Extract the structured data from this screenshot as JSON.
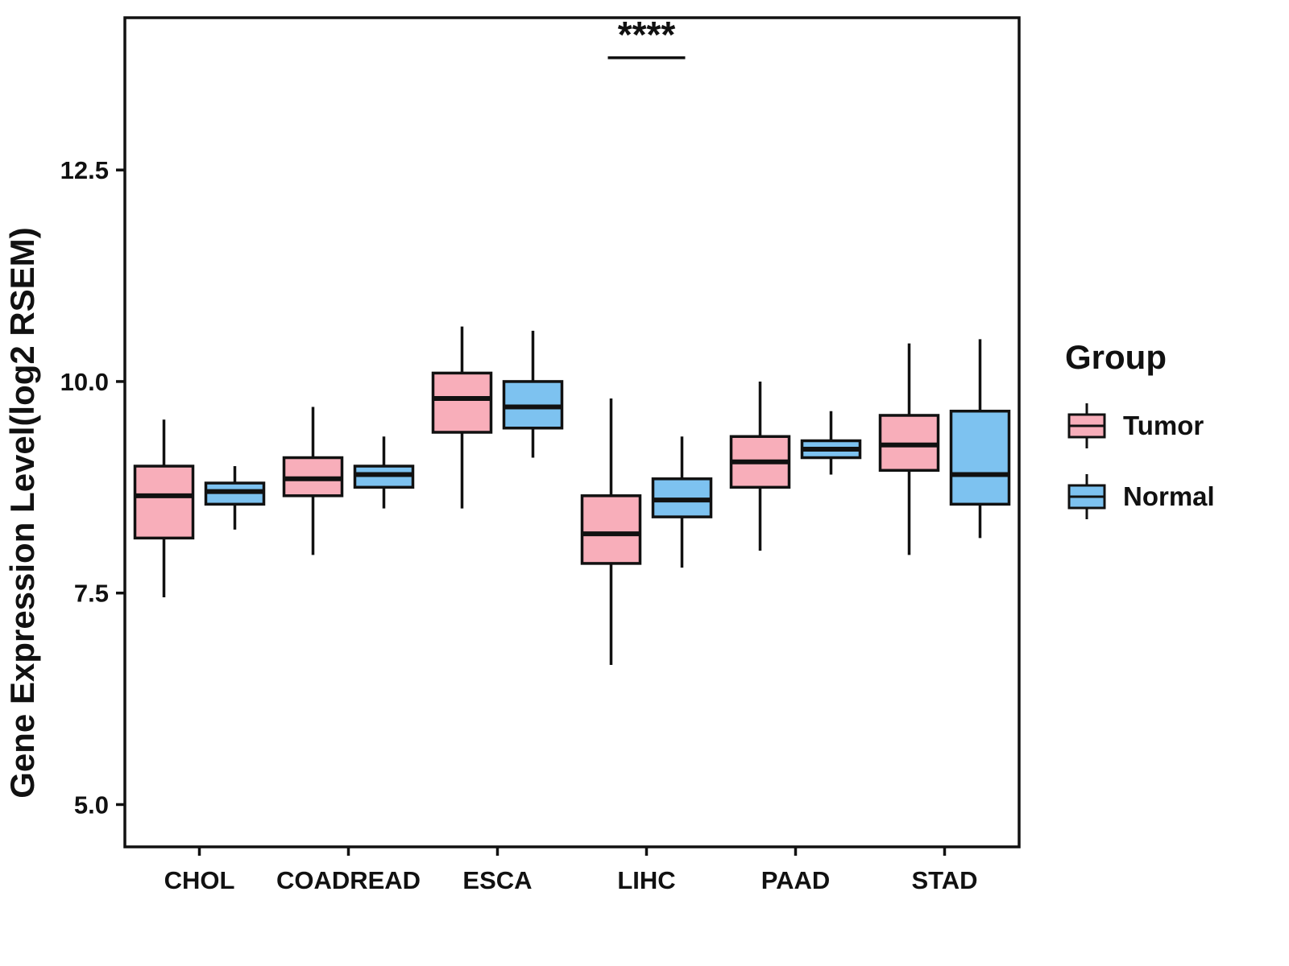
{
  "figure": {
    "legend": {
      "title": "Group",
      "entries": [
        {
          "label": "Tumor",
          "color": "#F8AEBA"
        },
        {
          "label": "Normal",
          "color": "#7DC2F0"
        }
      ]
    }
  },
  "chart_data": {
    "type": "boxplot",
    "title": "",
    "xlabel": "",
    "ylabel": "Gene Expression Level(log2 RSEM)",
    "categories": [
      "CHOL",
      "COADREAD",
      "ESCA",
      "LIHC",
      "PAAD",
      "STAD"
    ],
    "yticks": [
      5.0,
      7.5,
      10.0,
      12.5
    ],
    "ylim": [
      4.5,
      14.3
    ],
    "grid": false,
    "legend_position": "right",
    "series": [
      {
        "name": "Tumor",
        "color": "#F8AEBA",
        "boxes": [
          {
            "category": "CHOL",
            "low": 7.45,
            "q1": 8.15,
            "median": 8.65,
            "q3": 9.0,
            "high": 9.55
          },
          {
            "category": "COADREAD",
            "low": 7.95,
            "q1": 8.65,
            "median": 8.85,
            "q3": 9.1,
            "high": 9.7
          },
          {
            "category": "ESCA",
            "low": 8.5,
            "q1": 9.4,
            "median": 9.8,
            "q3": 10.1,
            "high": 10.65
          },
          {
            "category": "LIHC",
            "low": 6.65,
            "q1": 7.85,
            "median": 8.2,
            "q3": 8.65,
            "high": 9.8
          },
          {
            "category": "PAAD",
            "low": 8.0,
            "q1": 8.75,
            "median": 9.05,
            "q3": 9.35,
            "high": 10.0
          },
          {
            "category": "STAD",
            "low": 7.95,
            "q1": 8.95,
            "median": 9.25,
            "q3": 9.6,
            "high": 10.45
          }
        ]
      },
      {
        "name": "Normal",
        "color": "#7DC2F0",
        "boxes": [
          {
            "category": "CHOL",
            "low": 8.25,
            "q1": 8.55,
            "median": 8.7,
            "q3": 8.8,
            "high": 9.0
          },
          {
            "category": "COADREAD",
            "low": 8.5,
            "q1": 8.75,
            "median": 8.9,
            "q3": 9.0,
            "high": 9.35
          },
          {
            "category": "ESCA",
            "low": 9.1,
            "q1": 9.45,
            "median": 9.7,
            "q3": 10.0,
            "high": 10.6
          },
          {
            "category": "LIHC",
            "low": 7.8,
            "q1": 8.4,
            "median": 8.6,
            "q3": 8.85,
            "high": 9.35
          },
          {
            "category": "PAAD",
            "low": 8.9,
            "q1": 9.1,
            "median": 9.2,
            "q3": 9.3,
            "high": 9.65
          },
          {
            "category": "STAD",
            "low": 8.15,
            "q1": 8.55,
            "median": 8.9,
            "q3": 9.65,
            "high": 10.5
          }
        ]
      }
    ],
    "annotations": [
      {
        "text": "****",
        "category": "LIHC",
        "y": 13.95,
        "underline": true
      }
    ]
  }
}
